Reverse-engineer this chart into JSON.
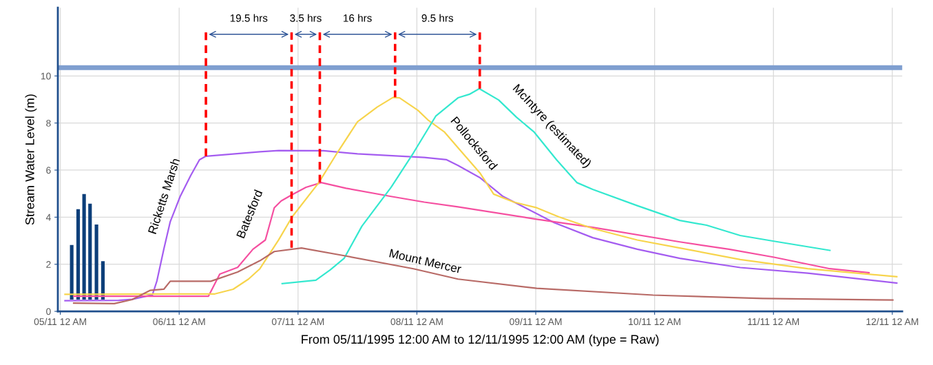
{
  "chart_data": {
    "type": "line",
    "ylabel": "Stream Water Level (m)",
    "xlabel": "From 05/11/1995 12:00 AM to 12/11/1995 12:00 AM (type = Raw)",
    "xlim": [
      "1995-11-04T23:30",
      "1995-11-12T02:00"
    ],
    "xticks": [
      {
        "value": "1995-11-05T00:00",
        "label": "05/11 12 AM"
      },
      {
        "value": "1995-11-06T00:00",
        "label": "06/11 12 AM"
      },
      {
        "value": "1995-11-07T00:00",
        "label": "07/11 12 AM"
      },
      {
        "value": "1995-11-08T00:00",
        "label": "08/11 12 AM"
      },
      {
        "value": "1995-11-09T00:00",
        "label": "09/11 12 AM"
      },
      {
        "value": "1995-11-10T00:00",
        "label": "10/11 12 AM"
      },
      {
        "value": "1995-11-11T00:00",
        "label": "11/11 12 AM"
      },
      {
        "value": "1995-11-12T00:00",
        "label": "12/11 12 AM"
      }
    ],
    "ylim": [
      0,
      12.9
    ],
    "yticks": [
      0,
      2,
      4,
      6,
      8,
      10
    ],
    "grid": true,
    "ref_lines": [
      {
        "axis": "y",
        "value": 10.35,
        "label": null,
        "color": "#7f9fd0"
      }
    ],
    "series": [
      {
        "name": "Ricketts Marsh",
        "color": "#a45cf0",
        "x": [
          "1995-11-05T00:57",
          "1995-11-05T11:48",
          "1995-11-05T14:30",
          "1995-11-05T18:36",
          "1995-11-05T19:30",
          "1995-11-05T20:54",
          "1995-11-05T22:12",
          "1995-11-06T00:12",
          "1995-11-06T02:18",
          "1995-11-06T04:06",
          "1995-11-06T05:24",
          "1995-11-06T16:18",
          "1995-11-06T20:06",
          "1995-11-07T05:12",
          "1995-11-07T12:00",
          "1995-11-07T21:00",
          "1995-11-08T01:30",
          "1995-11-08T06:00",
          "1995-11-08T08:18",
          "1995-11-08T12:48",
          "1995-11-08T17:24",
          "1995-11-08T21:54",
          "1995-11-09T03:42",
          "1995-11-09T11:30",
          "1995-11-09T20:30",
          "1995-11-10T05:06",
          "1995-11-10T17:18",
          "1995-11-11T06:54",
          "1995-11-12T00:54"
        ],
        "values": [
          0.45,
          0.47,
          0.51,
          0.7,
          1.29,
          2.64,
          3.81,
          4.88,
          5.76,
          6.44,
          6.59,
          6.78,
          6.83,
          6.82,
          6.69,
          6.59,
          6.54,
          6.44,
          6.2,
          5.67,
          4.88,
          4.4,
          3.77,
          3.13,
          2.64,
          2.25,
          1.86,
          1.62,
          1.2
        ]
      },
      {
        "name": "Batesford",
        "color": "#f54fa0",
        "x": [
          "1995-11-05T02:42",
          "1995-11-06T05:54",
          "1995-11-06T08:12",
          "1995-11-06T11:48",
          "1995-11-06T14:54",
          "1995-11-06T17:24",
          "1995-11-06T19:12",
          "1995-11-06T20:36",
          "1995-11-06T22:36",
          "1995-11-07T01:36",
          "1995-11-07T04:42",
          "1995-11-07T09:42",
          "1995-11-07T18:48",
          "1995-11-08T01:30",
          "1995-11-08T08:18",
          "1995-11-09T00:12",
          "1995-11-09T11:30",
          "1995-11-10T05:06",
          "1995-11-10T15:00",
          "1995-11-11T00:06",
          "1995-11-11T11:24",
          "1995-11-11T19:18"
        ],
        "values": [
          0.64,
          0.64,
          1.58,
          1.87,
          2.64,
          3.03,
          4.4,
          4.69,
          4.93,
          5.27,
          5.47,
          5.23,
          4.88,
          4.64,
          4.44,
          3.91,
          3.57,
          2.95,
          2.64,
          2.3,
          1.81,
          1.64
        ]
      },
      {
        "name": "Pollocksford",
        "color": "#f7d44c",
        "x": [
          "1995-11-05T00:57",
          "1995-11-06T07:12",
          "1995-11-06T10:54",
          "1995-11-06T14:00",
          "1995-11-06T16:18",
          "1995-11-06T20:06",
          "1995-11-06T22:48",
          "1995-11-07T04:12",
          "1995-11-07T07:54",
          "1995-11-07T12:00",
          "1995-11-07T16:00",
          "1995-11-07T19:12",
          "1995-11-07T20:30",
          "1995-11-08T00:12",
          "1995-11-08T02:24",
          "1995-11-08T05:36",
          "1995-11-08T08:18",
          "1995-11-08T12:48",
          "1995-11-08T15:30",
          "1995-11-08T19:36",
          "1995-11-09T00:12",
          "1995-11-09T04:42",
          "1995-11-09T11:30",
          "1995-11-09T20:30",
          "1995-11-10T05:06",
          "1995-11-10T17:18",
          "1995-11-11T06:54",
          "1995-11-12T00:54"
        ],
        "values": [
          0.72,
          0.74,
          0.94,
          1.37,
          1.81,
          3.04,
          4.01,
          5.47,
          6.73,
          8.05,
          8.68,
          9.09,
          9.07,
          8.54,
          8.1,
          7.61,
          6.95,
          5.86,
          4.98,
          4.64,
          4.4,
          4.01,
          3.52,
          3.03,
          2.69,
          2.2,
          1.81,
          1.47
        ]
      },
      {
        "name": "McIntyre (estimated)",
        "color": "#33e8cf",
        "x": [
          "1995-11-06T20:48",
          "1995-11-07T03:36",
          "1995-11-07T06:30",
          "1995-11-07T09:18",
          "1995-11-07T12:54",
          "1995-11-07T18:48",
          "1995-11-07T23:18",
          "1995-11-08T03:48",
          "1995-11-08T08:18",
          "1995-11-08T10:36",
          "1995-11-08T12:36",
          "1995-11-08T16:30",
          "1995-11-08T20:06",
          "1995-11-08T23:42",
          "1995-11-09T04:12",
          "1995-11-09T08:18",
          "1995-11-09T11:30",
          "1995-11-09T20:30",
          "1995-11-10T05:06",
          "1995-11-10T10:30",
          "1995-11-10T17:18",
          "1995-11-11T00:06",
          "1995-11-11T11:24"
        ],
        "values": [
          1.18,
          1.32,
          1.76,
          2.25,
          3.62,
          5.27,
          6.73,
          8.29,
          9.07,
          9.22,
          9.46,
          8.98,
          8.25,
          7.61,
          6.44,
          5.47,
          5.18,
          4.49,
          3.86,
          3.66,
          3.22,
          2.98,
          2.59
        ]
      },
      {
        "name": "Mount Mercer",
        "color": "#b86a66",
        "x": [
          "1995-11-05T02:42",
          "1995-11-05T10:54",
          "1995-11-05T14:30",
          "1995-11-05T18:06",
          "1995-11-05T20:54",
          "1995-11-05T22:12",
          "1995-11-06T06:24",
          "1995-11-06T11:48",
          "1995-11-06T16:18",
          "1995-11-06T19:12",
          "1995-11-07T00:42",
          "1995-11-07T09:42",
          "1995-11-07T23:18",
          "1995-11-08T08:18",
          "1995-11-09T00:12",
          "1995-11-09T23:42",
          "1995-11-10T21:48",
          "1995-11-12T00:06"
        ],
        "values": [
          0.35,
          0.33,
          0.5,
          0.89,
          0.94,
          1.28,
          1.28,
          1.67,
          2.15,
          2.54,
          2.69,
          2.35,
          1.81,
          1.37,
          0.98,
          0.69,
          0.55,
          0.48
        ]
      },
      {
        "type": "bar",
        "color": "#0d3f7a",
        "x": [
          "1995-11-05T02:18",
          "1995-11-05T03:36",
          "1995-11-05T04:48",
          "1995-11-05T06:00",
          "1995-11-05T07:18",
          "1995-11-05T08:36"
        ],
        "base": [
          0.5,
          0.5,
          0.5,
          0.5,
          0.5,
          0.5
        ],
        "values": [
          2.32,
          3.84,
          4.48,
          4.07,
          3.19,
          1.63
        ]
      },
      {
        "color": "#ff0000",
        "line_style": "dashed",
        "x": [
          "1995-11-06T05:24",
          "1995-11-06T05:24"
        ],
        "values": [
          6.59,
          11.85
        ]
      },
      {
        "color": "#ff0000",
        "line_style": "dashed",
        "x": [
          "1995-11-06T22:42",
          "1995-11-06T22:42"
        ],
        "values": [
          2.7,
          11.85
        ]
      },
      {
        "color": "#ff0000",
        "line_style": "dashed",
        "x": [
          "1995-11-07T04:24",
          "1995-11-07T04:24"
        ],
        "values": [
          5.47,
          11.85
        ]
      },
      {
        "color": "#ff0000",
        "line_style": "dashed",
        "x": [
          "1995-11-07T19:36",
          "1995-11-07T19:36"
        ],
        "values": [
          9.09,
          11.85
        ]
      },
      {
        "color": "#ff0000",
        "line_style": "dashed",
        "x": [
          "1995-11-08T12:42",
          "1995-11-08T12:42"
        ],
        "values": [
          9.46,
          11.85
        ]
      }
    ],
    "annotations": [
      "19.5 hrs",
      "3.5 hrs",
      "16 hrs",
      "9.5 hrs"
    ]
  }
}
